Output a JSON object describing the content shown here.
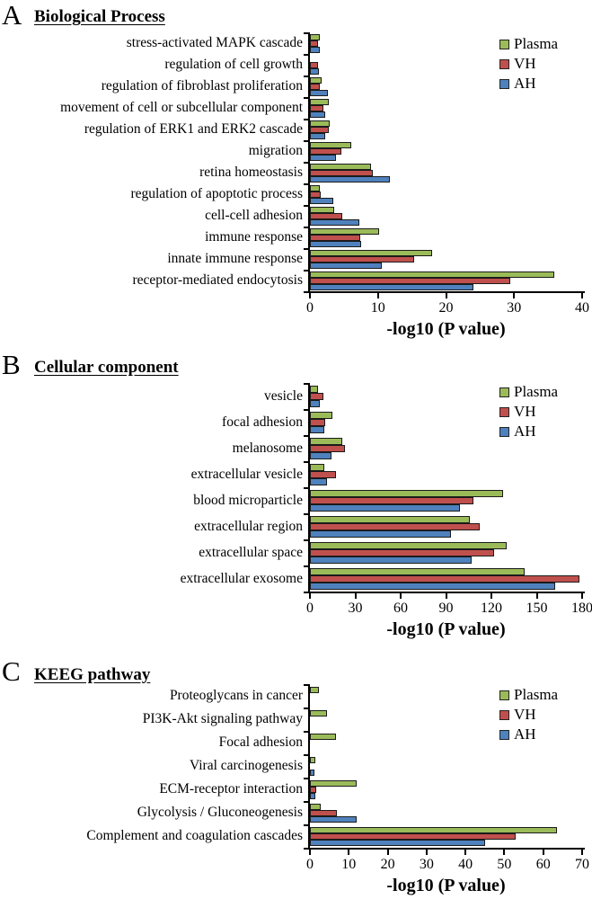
{
  "figure": {
    "background": "#ffffff"
  },
  "colors": {
    "plasma": "#9BBB59",
    "vh": "#C0504D",
    "ah": "#4F81BD",
    "bar_border": "#1b1b1b",
    "axis": "#000000",
    "text": "#000000"
  },
  "panels": [
    {
      "letter": "A",
      "title": "Biological Process"
    },
    {
      "letter": "B",
      "title": "Cellular component"
    },
    {
      "letter": "C",
      "title": "KEEG pathway"
    }
  ],
  "chart_data": [
    {
      "type": "bar",
      "orientation": "horizontal",
      "panel": "A",
      "title": "Biological Process",
      "xlabel": "-log10 (P value)",
      "xlim": [
        0,
        40
      ],
      "xticks": [
        0,
        10,
        20,
        30,
        40
      ],
      "grid": false,
      "legend": [
        "Plasma",
        "VH",
        "AH"
      ],
      "legend_position": "top-right",
      "categories": [
        "stress-activated MAPK cascade",
        "regulation of cell growth",
        "regulation of fibroblast proliferation",
        "movement of cell or subcellular component",
        "regulation of ERK1 and ERK2 cascade",
        "migration",
        "retina homeostasis",
        "regulation of apoptotic process",
        "cell-cell adhesion",
        "immune response",
        "innate immune response",
        "receptor-mediated endocytosis"
      ],
      "series": [
        {
          "name": "Plasma",
          "values": [
            1.4,
            0,
            1.7,
            2.8,
            2.9,
            6.1,
            9.0,
            1.5,
            3.5,
            10.1,
            17.9,
            35.9
          ]
        },
        {
          "name": "VH",
          "values": [
            1.2,
            1.2,
            1.5,
            2.0,
            2.8,
            4.6,
            9.3,
            1.6,
            4.7,
            7.4,
            15.3,
            29.5
          ]
        },
        {
          "name": "AH",
          "values": [
            1.4,
            1.3,
            2.7,
            2.3,
            2.3,
            3.8,
            11.8,
            3.4,
            7.2,
            7.5,
            10.5,
            24.0
          ]
        }
      ]
    },
    {
      "type": "bar",
      "orientation": "horizontal",
      "panel": "B",
      "title": "Cellular component",
      "xlabel": "-log10 (P value)",
      "xlim": [
        0,
        180
      ],
      "xticks": [
        0,
        30,
        60,
        90,
        120,
        150,
        180
      ],
      "grid": false,
      "legend": [
        "Plasma",
        "VH",
        "AH"
      ],
      "legend_position": "top-right",
      "categories": [
        "vesicle",
        "focal adhesion",
        "melanosome",
        "extracellular vesicle",
        "blood microparticle",
        "extracellular region",
        "extracellular space",
        "extracellular exosome"
      ],
      "series": [
        {
          "name": "Plasma",
          "values": [
            5.4,
            15.0,
            21.4,
            9.6,
            128,
            106,
            130,
            142
          ]
        },
        {
          "name": "VH",
          "values": [
            9.0,
            10.0,
            23.4,
            17.0,
            108,
            112,
            122,
            178
          ]
        },
        {
          "name": "AH",
          "values": [
            6.6,
            9.4,
            14.0,
            11.0,
            99,
            93,
            107,
            162
          ]
        }
      ]
    },
    {
      "type": "bar",
      "orientation": "horizontal",
      "panel": "C",
      "title": "KEEG pathway",
      "xlabel": "-log10 (P value)",
      "xlim": [
        0,
        70
      ],
      "xticks": [
        0,
        10,
        20,
        30,
        40,
        50,
        60,
        70
      ],
      "grid": false,
      "legend": [
        "Plasma",
        "VH",
        "AH"
      ],
      "legend_position": "top-right",
      "categories": [
        "Proteoglycans in cancer",
        "PI3K-Akt signaling pathway",
        "Focal adhesion",
        "Viral carcinogenesis",
        "ECM-receptor interaction",
        "Glycolysis / Gluconeogenesis",
        "Complement and coagulation cascades"
      ],
      "series": [
        {
          "name": "Plasma",
          "values": [
            2.2,
            4.4,
            6.6,
            1.4,
            12.0,
            2.7,
            63.5
          ]
        },
        {
          "name": "VH",
          "values": [
            0,
            0,
            0,
            0,
            1.7,
            6.9,
            52.8
          ]
        },
        {
          "name": "AH",
          "values": [
            0,
            0,
            0,
            1.2,
            1.5,
            11.9,
            45.0
          ]
        }
      ]
    }
  ]
}
